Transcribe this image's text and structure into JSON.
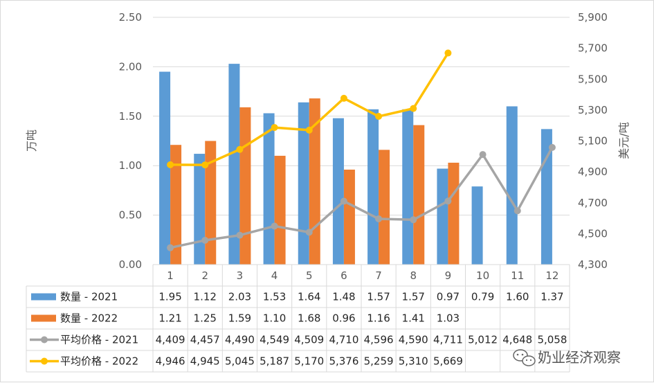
{
  "watermark": {
    "text": "奶业经济观察",
    "icon": "wechat-icon"
  },
  "colors": {
    "bar2021": "#5B9BD5",
    "bar2022": "#ED7D31",
    "line2021": "#A5A5A5",
    "line2022": "#FFC000",
    "grid": "#d9d9d9",
    "text": "#595959"
  },
  "chart_data": {
    "type": "bar",
    "categories": [
      "1",
      "2",
      "3",
      "4",
      "5",
      "6",
      "7",
      "8",
      "9",
      "10",
      "11",
      "12"
    ],
    "ylabel": "万吨",
    "y2label": "美元/吨",
    "ylim": [
      0,
      2.5
    ],
    "y2lim": [
      4300,
      5900
    ],
    "yticks": [
      "0.00",
      "0.50",
      "1.00",
      "1.50",
      "2.00",
      "2.50"
    ],
    "y2ticks": [
      "4,300",
      "4,500",
      "4,700",
      "4,900",
      "5,100",
      "5,300",
      "5,500",
      "5,700",
      "5,900"
    ],
    "grid": true,
    "legend": "data-table-left",
    "series": [
      {
        "name": "数量 - 2021",
        "kind": "bar",
        "axis": "left",
        "values": [
          1.95,
          1.12,
          2.03,
          1.53,
          1.64,
          1.48,
          1.57,
          1.57,
          0.97,
          0.79,
          1.6,
          1.37
        ],
        "labels": [
          "1.95",
          "1.12",
          "2.03",
          "1.53",
          "1.64",
          "1.48",
          "1.57",
          "1.57",
          "0.97",
          "0.79",
          "1.60",
          "1.37"
        ]
      },
      {
        "name": "数量 - 2022",
        "kind": "bar",
        "axis": "left",
        "values": [
          1.21,
          1.25,
          1.59,
          1.1,
          1.68,
          0.96,
          1.16,
          1.41,
          1.03,
          null,
          null,
          null
        ],
        "labels": [
          "1.21",
          "1.25",
          "1.59",
          "1.10",
          "1.68",
          "0.96",
          "1.16",
          "1.41",
          "1.03",
          "",
          "",
          ""
        ]
      },
      {
        "name": "平均价格 - 2021",
        "kind": "line",
        "axis": "right",
        "values": [
          4409,
          4457,
          4490,
          4549,
          4509,
          4710,
          4596,
          4590,
          4711,
          5012,
          4648,
          5058
        ],
        "labels": [
          "4,409",
          "4,457",
          "4,490",
          "4,549",
          "4,509",
          "4,710",
          "4,596",
          "4,590",
          "4,711",
          "5,012",
          "4,648",
          "5,058"
        ]
      },
      {
        "name": "平均价格 - 2022",
        "kind": "line",
        "axis": "right",
        "values": [
          4946,
          4945,
          5045,
          5187,
          5170,
          5376,
          5259,
          5310,
          5669,
          null,
          null,
          null
        ],
        "labels": [
          "4,946",
          "4,945",
          "5,045",
          "5,187",
          "5,170",
          "5,376",
          "5,259",
          "5,310",
          "5,669",
          "",
          "",
          ""
        ]
      }
    ]
  }
}
